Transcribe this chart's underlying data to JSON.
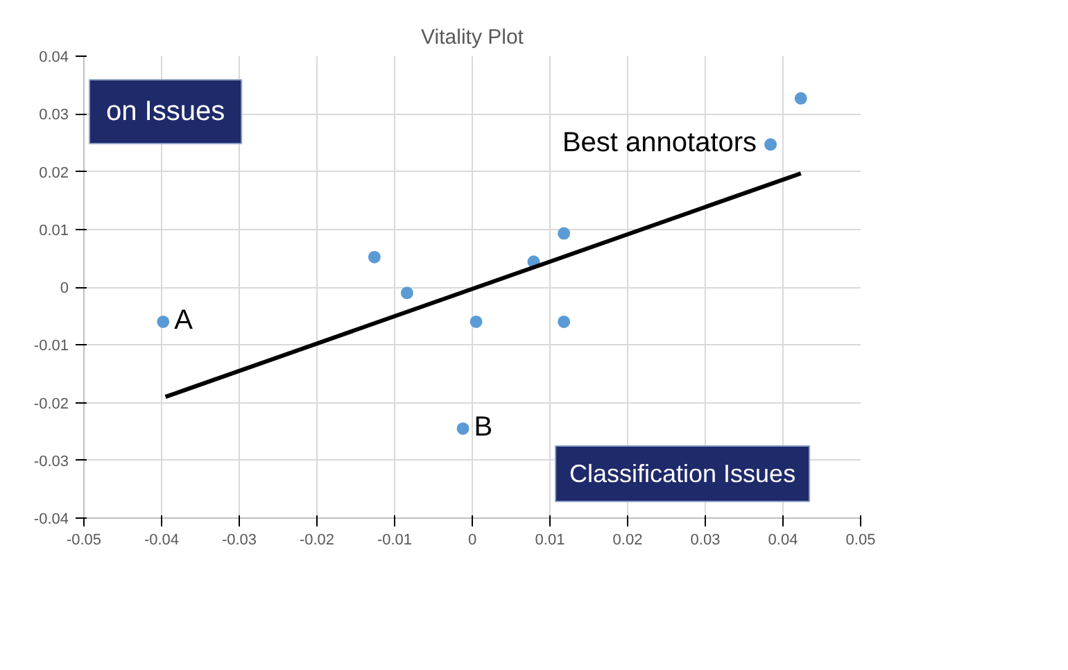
{
  "chart_data": {
    "type": "scatter",
    "title": "Vitality Plot",
    "xlim": [
      -0.05,
      0.05
    ],
    "ylim": [
      -0.04,
      0.04
    ],
    "xticks": [
      -0.05,
      -0.04,
      -0.03,
      -0.02,
      -0.01,
      0,
      0.01,
      0.02,
      0.03,
      0.04,
      0.05
    ],
    "yticks": [
      -0.04,
      -0.03,
      -0.02,
      -0.01,
      0,
      0.01,
      0.02,
      0.03,
      0.04
    ],
    "grid": true,
    "marker": "circle",
    "series": [
      {
        "type": "scatter",
        "color": "#5b9bd5",
        "x": [
          -0.0398,
          -0.0126,
          -0.0084,
          0.0005,
          -0.0012,
          0.0079,
          0.0118,
          0.0118,
          0.0384,
          0.0423
        ],
        "values": [
          -0.006,
          0.0052,
          -0.001,
          -0.006,
          -0.0245,
          0.0044,
          0.0093,
          -0.006,
          0.0247,
          0.0327
        ]
      },
      {
        "type": "line",
        "marker": "none",
        "color": "#000000",
        "x": [
          -0.0395,
          0.0423
        ],
        "values": [
          -0.019,
          0.0197
        ]
      }
    ],
    "annotations": [
      "on Issues",
      "Classification Issues",
      {
        "text": "A",
        "x": -0.0398,
        "y": -0.006
      },
      {
        "text": "B",
        "x": -0.0012,
        "y": -0.0245
      },
      {
        "text": "Best annotators",
        "x": 0.0384,
        "y": 0.0247
      }
    ]
  }
}
